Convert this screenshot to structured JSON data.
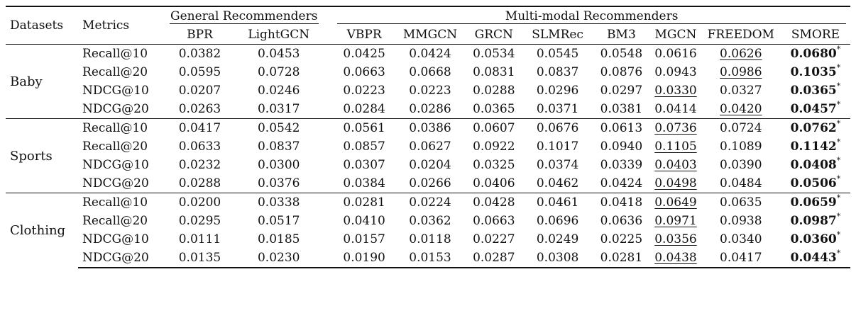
{
  "header": {
    "datasets_label": "Datasets",
    "metrics_label": "Metrics",
    "group_general": "General Recommenders",
    "group_multimodal": "Multi-modal Recommenders",
    "models": [
      "BPR",
      "LightGCN",
      "VBPR",
      "MMGCN",
      "GRCN",
      "SLMRec",
      "BM3",
      "MGCN",
      "FREEDOM",
      "SMORE"
    ]
  },
  "datasets": [
    {
      "name": "Baby",
      "rows": [
        {
          "metric": "Recall@10",
          "values": [
            "0.0382",
            "0.0453",
            "0.0425",
            "0.0424",
            "0.0534",
            "0.0545",
            "0.0548",
            "0.0616",
            "0.0626",
            "0.0680"
          ],
          "second_index": 8,
          "best_index": 9
        },
        {
          "metric": "Recall@20",
          "values": [
            "0.0595",
            "0.0728",
            "0.0663",
            "0.0668",
            "0.0831",
            "0.0837",
            "0.0876",
            "0.0943",
            "0.0986",
            "0.1035"
          ],
          "second_index": 8,
          "best_index": 9
        },
        {
          "metric": "NDCG@10",
          "values": [
            "0.0207",
            "0.0246",
            "0.0223",
            "0.0223",
            "0.0288",
            "0.0296",
            "0.0297",
            "0.0330",
            "0.0327",
            "0.0365"
          ],
          "second_index": 7,
          "best_index": 9
        },
        {
          "metric": "NDCG@20",
          "values": [
            "0.0263",
            "0.0317",
            "0.0284",
            "0.0286",
            "0.0365",
            "0.0371",
            "0.0381",
            "0.0414",
            "0.0420",
            "0.0457"
          ],
          "second_index": 8,
          "best_index": 9
        }
      ]
    },
    {
      "name": "Sports",
      "rows": [
        {
          "metric": "Recall@10",
          "values": [
            "0.0417",
            "0.0542",
            "0.0561",
            "0.0386",
            "0.0607",
            "0.0676",
            "0.0613",
            "0.0736",
            "0.0724",
            "0.0762"
          ],
          "second_index": 7,
          "best_index": 9
        },
        {
          "metric": "Recall@20",
          "values": [
            "0.0633",
            "0.0837",
            "0.0857",
            "0.0627",
            "0.0922",
            "0.1017",
            "0.0940",
            "0.1105",
            "0.1089",
            "0.1142"
          ],
          "second_index": 7,
          "best_index": 9
        },
        {
          "metric": "NDCG@10",
          "values": [
            "0.0232",
            "0.0300",
            "0.0307",
            "0.0204",
            "0.0325",
            "0.0374",
            "0.0339",
            "0.0403",
            "0.0390",
            "0.0408"
          ],
          "second_index": 7,
          "best_index": 9
        },
        {
          "metric": "NDCG@20",
          "values": [
            "0.0288",
            "0.0376",
            "0.0384",
            "0.0266",
            "0.0406",
            "0.0462",
            "0.0424",
            "0.0498",
            "0.0484",
            "0.0506"
          ],
          "second_index": 7,
          "best_index": 9
        }
      ]
    },
    {
      "name": "Clothing",
      "rows": [
        {
          "metric": "Recall@10",
          "values": [
            "0.0200",
            "0.0338",
            "0.0281",
            "0.0224",
            "0.0428",
            "0.0461",
            "0.0418",
            "0.0649",
            "0.0635",
            "0.0659"
          ],
          "second_index": 7,
          "best_index": 9
        },
        {
          "metric": "Recall@20",
          "values": [
            "0.0295",
            "0.0517",
            "0.0410",
            "0.0362",
            "0.0663",
            "0.0696",
            "0.0636",
            "0.0971",
            "0.0938",
            "0.0987"
          ],
          "second_index": 7,
          "best_index": 9
        },
        {
          "metric": "NDCG@10",
          "values": [
            "0.0111",
            "0.0185",
            "0.0157",
            "0.0118",
            "0.0227",
            "0.0249",
            "0.0225",
            "0.0356",
            "0.0340",
            "0.0360"
          ],
          "second_index": 7,
          "best_index": 9
        },
        {
          "metric": "NDCG@20",
          "values": [
            "0.0135",
            "0.0230",
            "0.0190",
            "0.0153",
            "0.0287",
            "0.0308",
            "0.0281",
            "0.0438",
            "0.0417",
            "0.0443"
          ],
          "second_index": 7,
          "best_index": 9
        }
      ]
    }
  ],
  "significance_marker": "*"
}
